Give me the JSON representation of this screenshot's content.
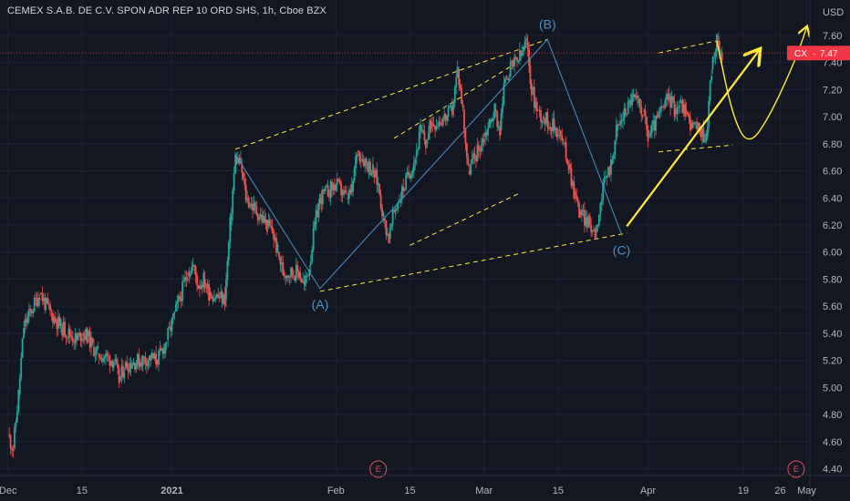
{
  "header": {
    "title": "CEMEX S.A.B. DE C.V. SPON ADR REP 10 ORD SHS, 1h, Cboe BZX"
  },
  "colors": {
    "background": "#131722",
    "up": "#26a69a",
    "down": "#ef5350",
    "wave_line": "#4a90c8",
    "annotation": "#ffeb3b",
    "price_tag": "#f23645",
    "event_marker": "#e0505a"
  },
  "price_scale": {
    "currency": "USD",
    "ticks": [
      "7.60",
      "7.40",
      "7.20",
      "7.00",
      "6.80",
      "6.60",
      "6.40",
      "6.20",
      "6.00",
      "5.80",
      "5.60",
      "5.40",
      "5.20",
      "5.00",
      "4.80",
      "4.60",
      "4.40"
    ]
  },
  "time_axis": {
    "ticks": [
      "Dec",
      "15",
      "2021",
      "Feb",
      "15",
      "Mar",
      "15",
      "Apr",
      "19",
      "26",
      "May"
    ]
  },
  "last_price": {
    "symbol": "CX",
    "value": "7.47"
  },
  "wave_labels": [
    "(A)",
    "(B)",
    "(C)"
  ],
  "events": [
    "E",
    "E"
  ],
  "chart_data": {
    "type": "candlestick",
    "title": "CEMEX S.A.B. DE C.V. SPON ADR REP 10 ORD SHS, 1h, Cboe BZX",
    "ylabel": "USD",
    "ylim": [
      4.35,
      7.7
    ],
    "x_range": [
      "2020-12-01",
      "2021-05-01"
    ],
    "last_price": 7.47,
    "price_path": [
      [
        "2020-12-01",
        4.65
      ],
      [
        "2020-12-02",
        4.55
      ],
      [
        "2020-12-03",
        4.95
      ],
      [
        "2020-12-04",
        5.45
      ],
      [
        "2020-12-07",
        5.7
      ],
      [
        "2020-12-08",
        5.62
      ],
      [
        "2020-12-09",
        5.55
      ],
      [
        "2020-12-10",
        5.5
      ],
      [
        "2020-12-11",
        5.45
      ],
      [
        "2020-12-14",
        5.35
      ],
      [
        "2020-12-15",
        5.4
      ],
      [
        "2020-12-16",
        5.38
      ],
      [
        "2020-12-17",
        5.3
      ],
      [
        "2020-12-18",
        5.25
      ],
      [
        "2020-12-21",
        5.2
      ],
      [
        "2020-12-22",
        5.05
      ],
      [
        "2020-12-23",
        5.15
      ],
      [
        "2020-12-24",
        5.18
      ],
      [
        "2020-12-28",
        5.22
      ],
      [
        "2020-12-29",
        5.2
      ],
      [
        "2020-12-30",
        5.25
      ],
      [
        "2020-12-31",
        5.35
      ],
      [
        "2021-01-04",
        5.85
      ],
      [
        "2021-01-05",
        5.9
      ],
      [
        "2021-01-06",
        5.75
      ],
      [
        "2021-01-07",
        5.8
      ],
      [
        "2021-01-08",
        5.7
      ],
      [
        "2021-01-11",
        5.65
      ],
      [
        "2021-01-12",
        6.2
      ],
      [
        "2021-01-13",
        6.7
      ],
      [
        "2021-01-14",
        6.65
      ],
      [
        "2021-01-15",
        6.4
      ],
      [
        "2021-01-19",
        6.2
      ],
      [
        "2021-01-20",
        6.15
      ],
      [
        "2021-01-21",
        6.0
      ],
      [
        "2021-01-22",
        5.85
      ],
      [
        "2021-01-25",
        5.85
      ],
      [
        "2021-01-26",
        5.75
      ],
      [
        "2021-01-27",
        5.9
      ],
      [
        "2021-01-28",
        6.2
      ],
      [
        "2021-01-29",
        6.4
      ],
      [
        "2021-02-01",
        6.5
      ],
      [
        "2021-02-02",
        6.45
      ],
      [
        "2021-02-03",
        6.4
      ],
      [
        "2021-02-04",
        6.45
      ],
      [
        "2021-02-05",
        6.75
      ],
      [
        "2021-02-08",
        6.6
      ],
      [
        "2021-02-09",
        6.5
      ],
      [
        "2021-02-10",
        6.25
      ],
      [
        "2021-02-11",
        6.1
      ],
      [
        "2021-02-12",
        6.3
      ],
      [
        "2021-02-16",
        6.7
      ],
      [
        "2021-02-17",
        6.9
      ],
      [
        "2021-02-18",
        6.8
      ],
      [
        "2021-02-19",
        6.95
      ],
      [
        "2021-02-22",
        7.0
      ],
      [
        "2021-02-23",
        7.05
      ],
      [
        "2021-02-24",
        7.35
      ],
      [
        "2021-02-25",
        7.05
      ],
      [
        "2021-02-26",
        6.6
      ],
      [
        "2021-03-01",
        6.85
      ],
      [
        "2021-03-02",
        6.95
      ],
      [
        "2021-03-03",
        7.05
      ],
      [
        "2021-03-04",
        6.9
      ],
      [
        "2021-03-05",
        7.3
      ],
      [
        "2021-03-08",
        7.45
      ],
      [
        "2021-03-09",
        7.55
      ],
      [
        "2021-03-10",
        7.2
      ],
      [
        "2021-03-11",
        7.05
      ],
      [
        "2021-03-12",
        7.0
      ],
      [
        "2021-03-15",
        6.9
      ],
      [
        "2021-03-16",
        6.8
      ],
      [
        "2021-03-17",
        6.65
      ],
      [
        "2021-03-18",
        6.45
      ],
      [
        "2021-03-19",
        6.3
      ],
      [
        "2021-03-22",
        6.15
      ],
      [
        "2021-03-23",
        6.35
      ],
      [
        "2021-03-24",
        6.55
      ],
      [
        "2021-03-25",
        6.65
      ],
      [
        "2021-03-26",
        6.9
      ],
      [
        "2021-03-29",
        7.15
      ],
      [
        "2021-03-30",
        7.1
      ],
      [
        "2021-03-31",
        7.05
      ],
      [
        "2021-04-01",
        6.85
      ],
      [
        "2021-04-05",
        7.15
      ],
      [
        "2021-04-06",
        7.05
      ],
      [
        "2021-04-07",
        7.1
      ],
      [
        "2021-04-08",
        7.05
      ],
      [
        "2021-04-09",
        6.95
      ],
      [
        "2021-04-12",
        6.85
      ],
      [
        "2021-04-13",
        7.35
      ],
      [
        "2021-04-14",
        7.55
      ],
      [
        "2021-04-15",
        7.47
      ]
    ],
    "wave_points": [
      {
        "label": "(A)",
        "date": "2021-01-29",
        "price": 5.73
      },
      {
        "label": "(B)",
        "date": "2021-03-13",
        "price": 7.57
      },
      {
        "label": "(C)",
        "date": "2021-03-27",
        "price": 6.13
      }
    ],
    "wave_path": [
      [
        "2021-01-13",
        6.72
      ],
      [
        "2021-01-29",
        5.73
      ],
      [
        "2021-03-13",
        7.57
      ],
      [
        "2021-03-27",
        6.13
      ]
    ],
    "channels": [
      [
        [
          "2021-01-13",
          6.76
        ],
        [
          "2021-03-13",
          7.57
        ]
      ],
      [
        [
          "2021-01-29",
          5.71
        ],
        [
          "2021-03-28",
          6.14
        ]
      ],
      [
        [
          "2021-02-12",
          6.84
        ],
        [
          "2021-03-06",
          7.37
        ]
      ],
      [
        [
          "2021-02-15",
          6.05
        ],
        [
          "2021-03-08",
          6.44
        ]
      ],
      [
        [
          "2021-04-03",
          7.47
        ],
        [
          "2021-04-14",
          7.56
        ]
      ],
      [
        [
          "2021-04-03",
          6.74
        ],
        [
          "2021-04-17",
          6.79
        ]
      ]
    ],
    "projection_arrow": [
      [
        "2021-03-28",
        6.19
      ],
      [
        "2021-04-22",
        7.49
      ]
    ],
    "projection_path": [
      [
        "2021-04-14",
        7.56
      ],
      [
        "2021-04-17",
        7.0
      ],
      [
        "2021-04-20",
        6.78
      ],
      [
        "2021-04-24",
        7.0
      ],
      [
        "2021-04-29",
        7.43
      ],
      [
        "2021-05-01",
        7.66
      ]
    ],
    "event_dates": [
      "2021-02-09",
      "2021-04-29"
    ]
  }
}
